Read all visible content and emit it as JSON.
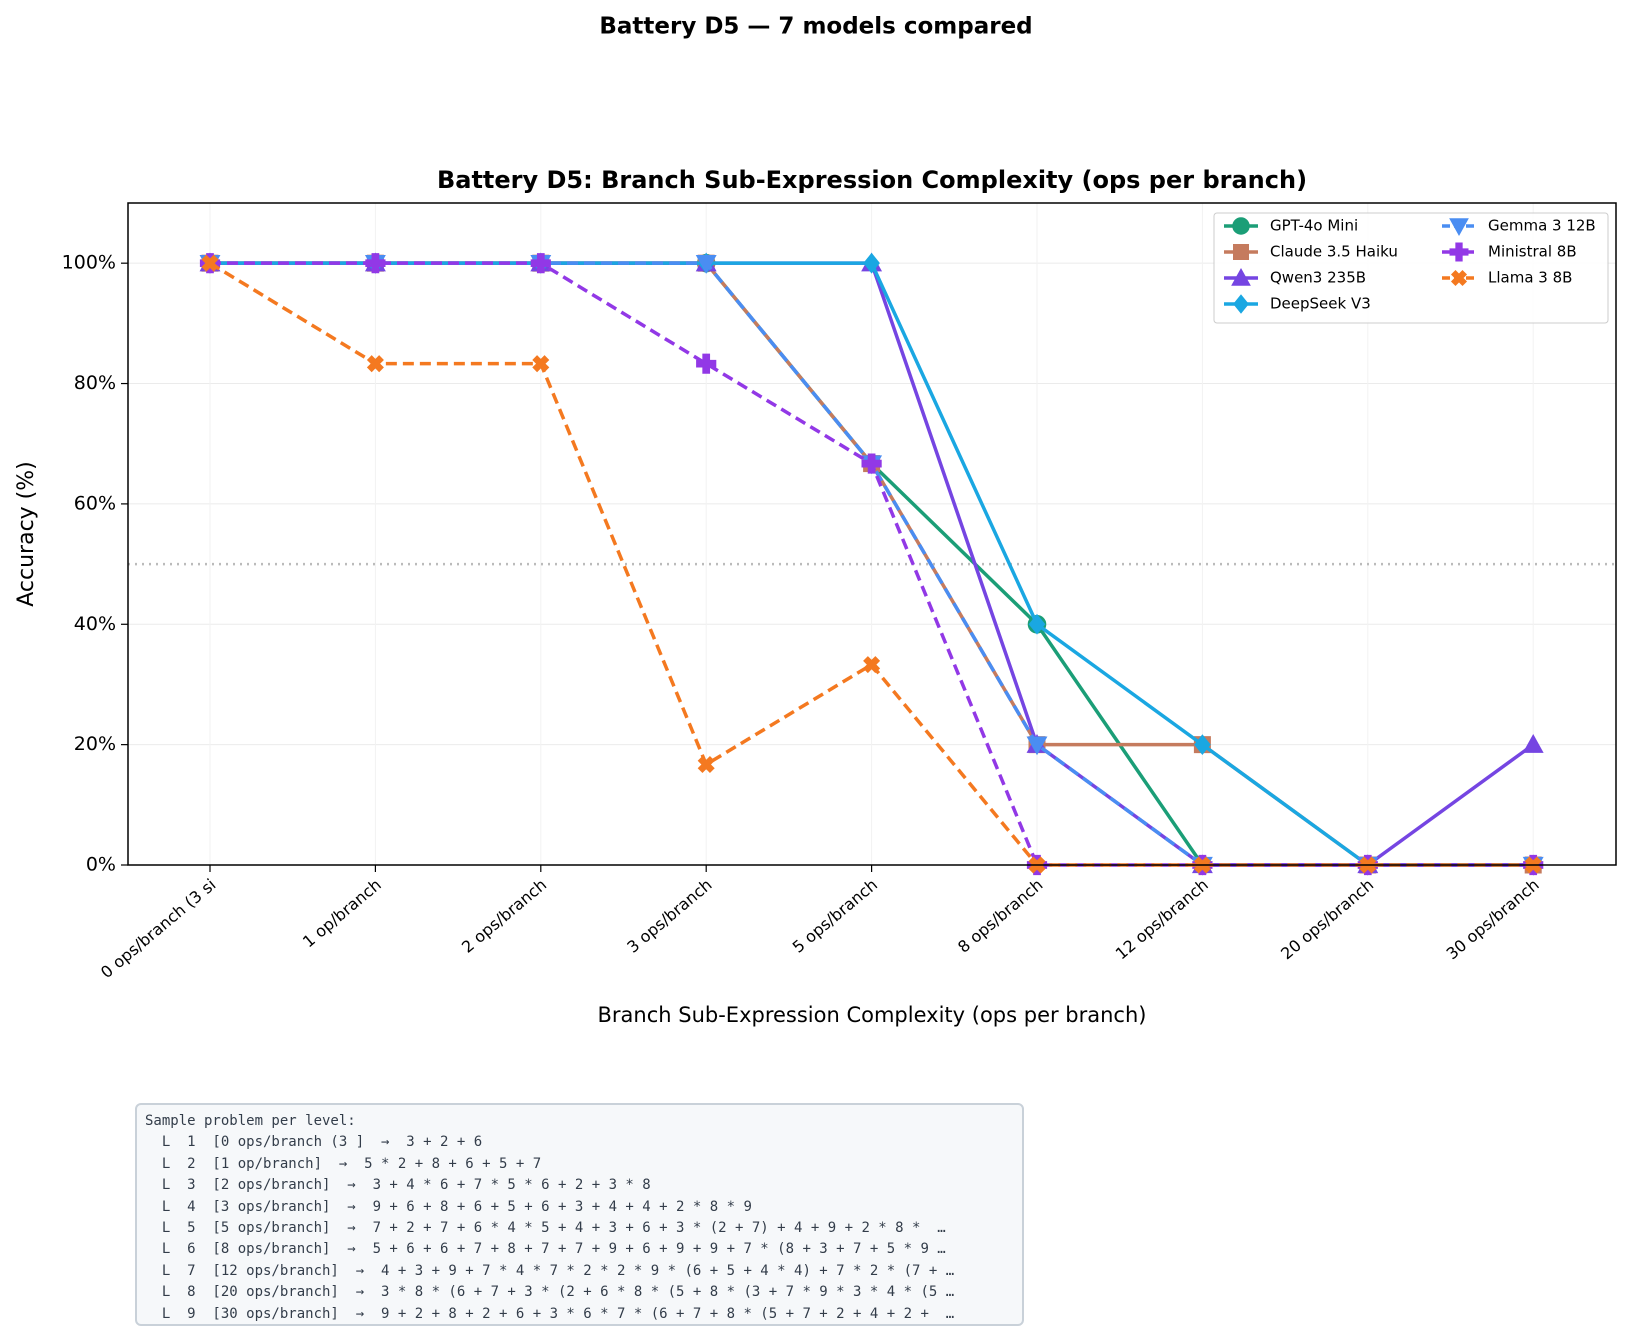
{
  "chart_data": {
    "type": "line",
    "suptitle": "Battery D5  —  7 models compared",
    "title": "Battery D5: Branch Sub-Expression Complexity (ops per branch)",
    "xlabel": "Branch Sub-Expression Complexity (ops per branch)",
    "ylabel": "Accuracy (%)",
    "categories": [
      "0 ops/branch (3 si",
      "1 op/branch",
      "2 ops/branch",
      "3 ops/branch",
      "5 ops/branch",
      "8 ops/branch",
      "12 ops/branch",
      "20 ops/branch",
      "30 ops/branch"
    ],
    "ylim": [
      0,
      110
    ],
    "yticks": [
      {
        "value": 0,
        "label": "0%"
      },
      {
        "value": 20,
        "label": "20%"
      },
      {
        "value": 40,
        "label": "40%"
      },
      {
        "value": 60,
        "label": "60%"
      },
      {
        "value": 80,
        "label": "80%"
      },
      {
        "value": 100,
        "label": "100%"
      }
    ],
    "grid": true,
    "reference_line": 50,
    "legend": "upper right",
    "series": [
      {
        "name": "GPT-4o Mini",
        "color": "#1b9e77",
        "dash": false,
        "marker": "circle",
        "values": [
          100,
          100,
          100,
          100,
          66.7,
          40,
          0,
          0,
          0
        ]
      },
      {
        "name": "Claude 3.5 Haiku",
        "color": "#c57b5e",
        "dash": false,
        "marker": "square",
        "values": [
          100,
          100,
          100,
          100,
          66.7,
          20,
          20,
          0,
          0
        ]
      },
      {
        "name": "Qwen3 235B",
        "color": "#7545e2",
        "dash": false,
        "marker": "triangle-up",
        "values": [
          100,
          100,
          100,
          100,
          100,
          20,
          0,
          0,
          20
        ]
      },
      {
        "name": "DeepSeek V3",
        "color": "#1aa7e2",
        "dash": false,
        "marker": "diamond",
        "values": [
          100,
          100,
          100,
          100,
          100,
          40,
          20,
          0,
          0
        ]
      },
      {
        "name": "Gemma 3 12B",
        "color": "#4a8df2",
        "dash": true,
        "marker": "triangle-down",
        "values": [
          100,
          100,
          100,
          100,
          66.7,
          20,
          0,
          0,
          0
        ]
      },
      {
        "name": "Ministral 8B",
        "color": "#9238e6",
        "dash": true,
        "marker": "plus",
        "values": [
          100,
          100,
          100,
          83.3,
          66.7,
          0,
          0,
          0,
          0
        ]
      },
      {
        "name": "Llama 3 8B",
        "color": "#f47920",
        "dash": true,
        "marker": "x",
        "values": [
          100,
          83.3,
          83.3,
          16.7,
          33.3,
          0,
          0,
          0,
          0
        ]
      }
    ],
    "annotation": {
      "title": "Sample problem per level:",
      "lines": [
        "  L  1  [0 ops/branch (3 ]  →  3 + 2 + 6",
        "  L  2  [1 op/branch]  →  5 * 2 + 8 + 6 + 5 + 7",
        "  L  3  [2 ops/branch]  →  3 + 4 * 6 + 7 * 5 * 6 + 2 + 3 * 8",
        "  L  4  [3 ops/branch]  →  9 + 6 + 8 + 6 + 5 + 6 + 3 + 4 + 4 + 2 * 8 * 9",
        "  L  5  [5 ops/branch]  →  7 + 2 + 7 + 6 * 4 * 5 + 4 + 3 + 6 + 3 * (2 + 7) + 4 + 9 + 2 * 8 *  …",
        "  L  6  [8 ops/branch]  →  5 + 6 + 6 + 7 + 8 + 7 + 7 + 9 + 6 + 9 + 9 + 7 * (8 + 3 + 7 + 5 * 9 …",
        "  L  7  [12 ops/branch]  →  4 + 3 + 9 + 7 * 4 * 7 * 2 * 2 * 9 * (6 + 5 + 4 * 4) + 7 * 2 * (7 + …",
        "  L  8  [20 ops/branch]  →  3 * 8 * (6 + 7 + 3 * (2 + 6 * 8 * (5 + 8 * (3 + 7 * 9 * 3 * 4 * (5 …",
        "  L  9  [30 ops/branch]  →  9 + 2 + 8 + 2 + 6 + 3 * 6 * 7 * (6 + 7 + 8 * (5 + 7 + 2 + 4 + 2 +  …"
      ]
    }
  }
}
